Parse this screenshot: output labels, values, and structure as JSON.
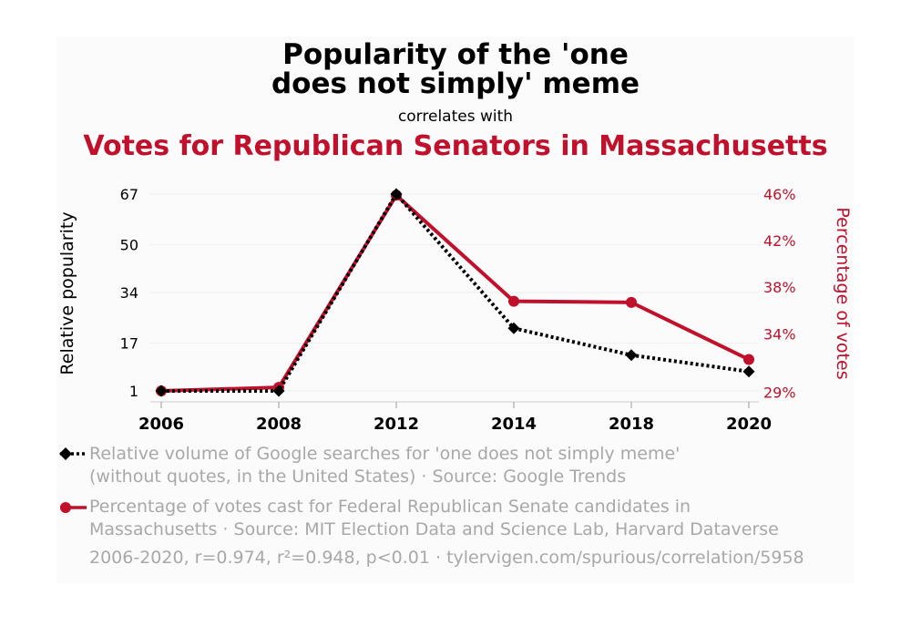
{
  "header": {
    "title_line1": "Popularity of the 'one",
    "title_line2": "does not simply' meme",
    "correlates_with": "correlates with",
    "subtitle": "Votes for Republican Senators in Massachusetts"
  },
  "colors": {
    "series1": "#000000",
    "series2": "#c0102b",
    "grid": "#eeeeee",
    "muted": "#a8a8a8"
  },
  "chart_data": {
    "type": "line",
    "categories": [
      "2006",
      "2008",
      "2012",
      "2014",
      "2018",
      "2020"
    ],
    "series": [
      {
        "name": "Relative volume of Google searches for 'one does not simply meme' (without quotes, in the United States)",
        "axis": "left",
        "style": "dotted",
        "marker": "diamond",
        "values": [
          1,
          1,
          67,
          22,
          13,
          7.5
        ]
      },
      {
        "name": "Percentage of votes cast for Federal Republican Senate candidates in Massachusetts",
        "axis": "right",
        "style": "solid",
        "marker": "circle",
        "values": [
          29.1,
          29.4,
          45.9,
          36.8,
          36.7,
          31.8
        ]
      }
    ],
    "y_left": {
      "label": "Relative popularity",
      "ticks": [
        1,
        17,
        34,
        50,
        67
      ],
      "tick_labels": [
        "1",
        "17",
        "34",
        "50",
        "67"
      ],
      "range": [
        1,
        67
      ]
    },
    "y_right": {
      "label": "Percentage of votes",
      "ticks": [
        29,
        34,
        38,
        42,
        46
      ],
      "tick_labels": [
        "29%",
        "34%",
        "38%",
        "42%",
        "46%"
      ],
      "range": [
        29.1,
        46
      ]
    },
    "grid": true
  },
  "legend": {
    "item1_line1": "Relative volume of Google searches for 'one does not simply meme'",
    "item1_line2": "(without quotes, in the United States) · Source: Google Trends",
    "item2_line1": "Percentage of votes cast for Federal Republican Senate candidates in",
    "item2_line2": "Massachusetts · Source: MIT Election Data and Science Lab, Harvard Dataverse"
  },
  "footnote": "2006-2020, r=0.974, r²=0.948, p<0.01 · tylervigen.com/spurious/correlation/5958"
}
